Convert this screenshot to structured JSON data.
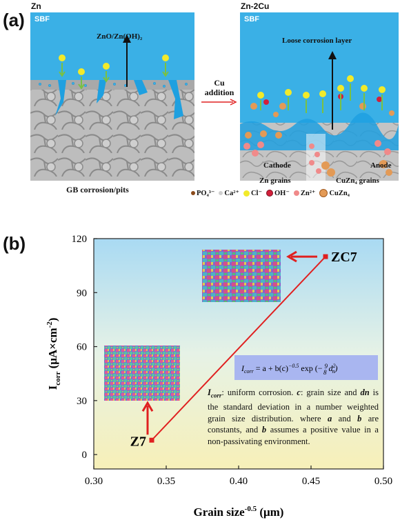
{
  "panel_a": {
    "label": "(a)",
    "left": {
      "title": "Zn",
      "medium": "SBF",
      "product": "ZnO/Zn(OH)₂",
      "caption": "GB corrosion/pits"
    },
    "arrow_label": [
      "Cu",
      "addition"
    ],
    "right": {
      "title": "Zn-2Cu",
      "medium": "SBF",
      "layer": "Loose corrosion layer",
      "cathode": [
        "Cathode",
        "Zn grains"
      ],
      "anode": [
        "Anode",
        "CuZn₄ grains"
      ]
    },
    "legend": [
      {
        "text": "PO₄³⁻",
        "color": "#8a4a1a"
      },
      {
        "text": "Ca²⁺",
        "color": "#cfcfcf"
      },
      {
        "text": "Cl⁻",
        "color": "#f2ea2a"
      },
      {
        "text": "OH⁻",
        "color": "#d21f3a"
      },
      {
        "text": "Zn²⁺",
        "color": "#f08a8a"
      },
      {
        "text": "CuZn₄",
        "color": "#e39a56"
      }
    ],
    "colors": {
      "sbf": "#3ab0e6",
      "corrosion": "#1fa0e0",
      "arrow_red": "#e02020",
      "ion_green": "#7ac142"
    }
  },
  "panel_b": {
    "label": "(b)",
    "equation": "I_corr = a + b(c)^-0.5 exp(-9/8 d_n^2)",
    "description": [
      {
        "t": "I",
        "b": true,
        "i": true
      },
      {
        "t": "corr",
        "b": true,
        "i": true,
        "sub": true
      },
      {
        "t": ": uniform corrosion. "
      },
      {
        "t": "c",
        "b": true,
        "i": true
      },
      {
        "t": ": grain size and "
      },
      {
        "t": "dn",
        "b": true,
        "i": true
      },
      {
        "t": " is the standard deviation in a number weighted grain size distribution. where "
      },
      {
        "t": "a",
        "b": true,
        "i": true
      },
      {
        "t": " and "
      },
      {
        "t": "b",
        "b": true,
        "i": true
      },
      {
        "t": " are constants, and "
      },
      {
        "t": "b",
        "b": true,
        "i": true
      },
      {
        "t": " assumes a positive value in a non-passivating environment."
      }
    ]
  },
  "chart_data": {
    "type": "line",
    "xlabel": "Grain size^-0.5 (μm)",
    "ylabel": "I_corr (μA×cm^-2)",
    "xlim": [
      0.3,
      0.5
    ],
    "ylim": [
      -8,
      120
    ],
    "xticks": [
      "0.30",
      "0.35",
      "0.40",
      "0.45",
      "0.50"
    ],
    "xtick_values": [
      0.3,
      0.35,
      0.4,
      0.45,
      0.5
    ],
    "yticks": [
      "0",
      "30",
      "60",
      "90",
      "120"
    ],
    "ytick_values": [
      0,
      30,
      60,
      90,
      120
    ],
    "points": [
      {
        "label": "Z7",
        "x": 0.34,
        "y": 8
      },
      {
        "label": "ZC7",
        "x": 0.46,
        "y": 110
      }
    ],
    "line_color": "#e02020"
  }
}
